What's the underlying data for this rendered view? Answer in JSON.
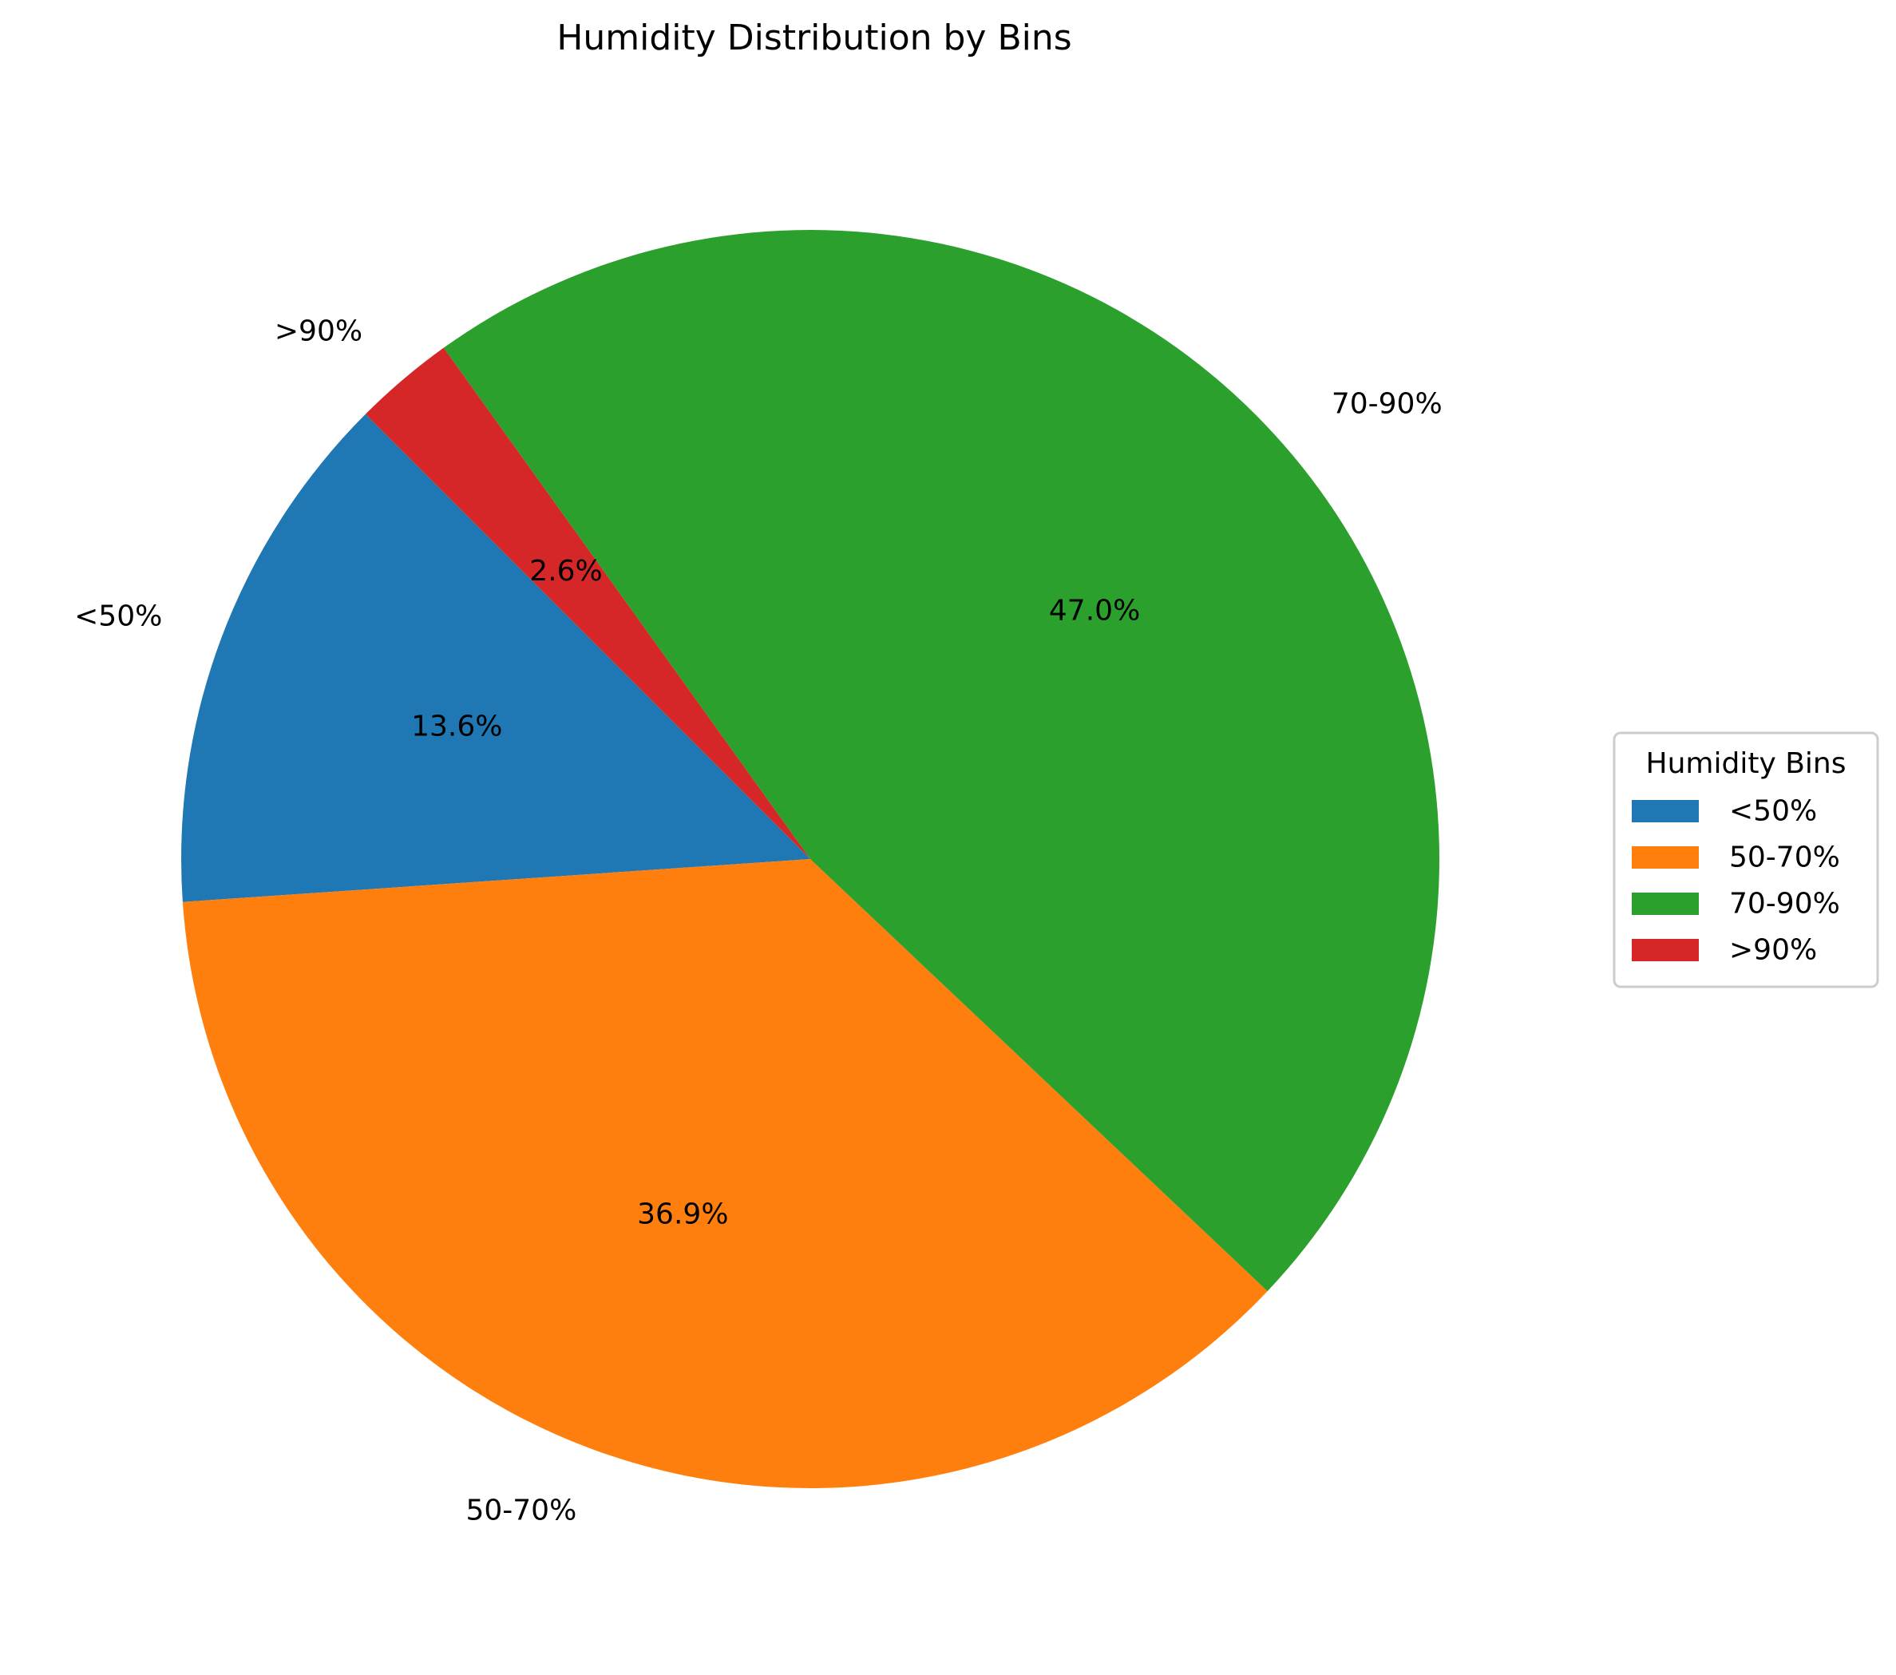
{
  "chart_data": {
    "type": "pie",
    "title": "Humidity Distribution by Bins",
    "categories": [
      "<50%",
      "50-70%",
      "70-90%",
      ">90%"
    ],
    "values": [
      13.6,
      36.9,
      47.0,
      2.6
    ],
    "pct_labels": [
      "13.6%",
      "36.9%",
      "47.0%",
      "2.6%"
    ],
    "colors": [
      "#1f77b4",
      "#ff7f0e",
      "#2ca02c",
      "#d62728"
    ],
    "start_angle_deg": 135,
    "direction": "counterclockwise",
    "legend": {
      "title": "Humidity Bins",
      "placement": "center-right",
      "entries": [
        "<50%",
        "50-70%",
        "70-90%",
        ">90%"
      ]
    }
  }
}
